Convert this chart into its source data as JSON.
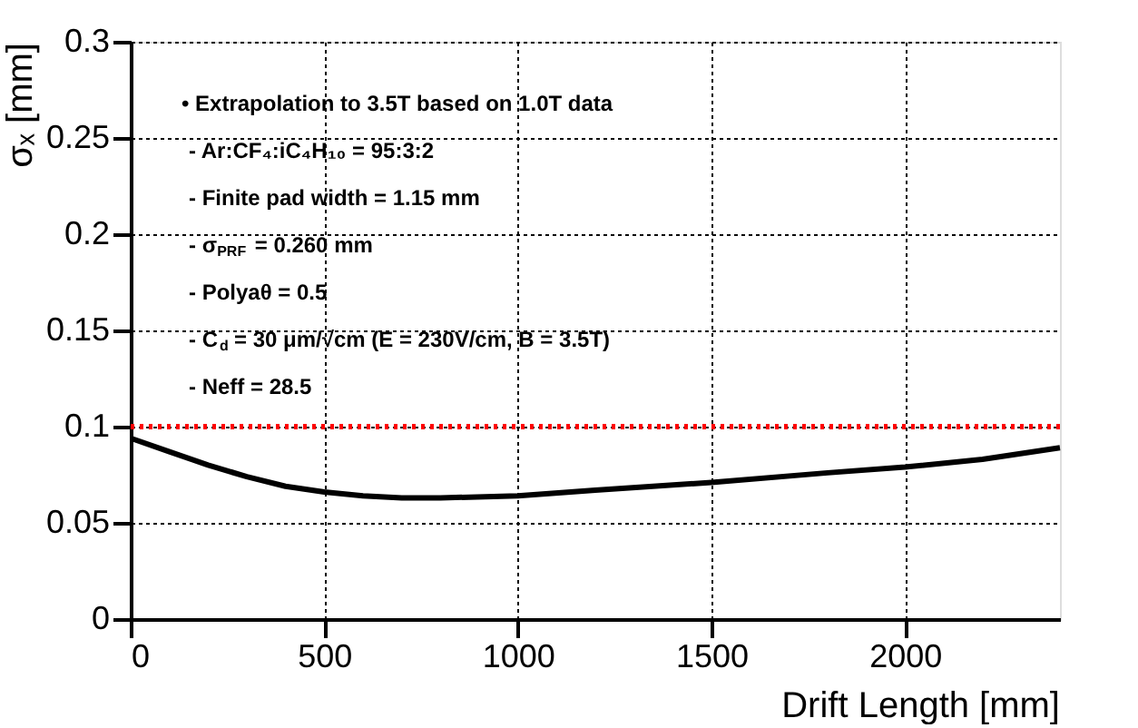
{
  "chart_data": {
    "type": "line",
    "xlabel": "Drift Length [mm]",
    "ylabel": "σₓ [mm]",
    "x": [
      0,
      100,
      200,
      300,
      400,
      500,
      600,
      700,
      800,
      1000,
      1200,
      1500,
      1800,
      2000,
      2200,
      2400
    ],
    "series": [
      {
        "color": "#000000",
        "values": [
          0.094,
          0.087,
          0.08,
          0.074,
          0.069,
          0.066,
          0.064,
          0.063,
          0.063,
          0.064,
          0.067,
          0.071,
          0.076,
          0.079,
          0.083,
          0.089
        ]
      }
    ],
    "xlim": [
      0,
      2400
    ],
    "xticks": [
      0,
      500,
      1000,
      1500,
      2000
    ],
    "ylim": [
      0,
      0.3
    ],
    "yticks": [
      0,
      0.05,
      0.1,
      0.15,
      0.2,
      0.25,
      0.3
    ],
    "ref_lines": [
      {
        "axis": "y",
        "value": 0.1,
        "color": "#ff0000",
        "line_style": "dotted"
      }
    ],
    "annotations": [
      "• Extrapolation to 3.5T based on 1.0T data",
      "- Ar:CF₄:iC₄H₁₀ = 95:3:2",
      "- Finite pad width = 1.15 mm",
      "- σ$_{PRF}$ = 0.260 mm",
      "- Polyaθ = 0.5",
      "- C$_{d}$ = 30 μm/√cm (E = 230V/cm, B = 3.5T)",
      "- Neff = 28.5"
    ],
    "grid": true,
    "marker": "none",
    "line_style": "solid"
  }
}
